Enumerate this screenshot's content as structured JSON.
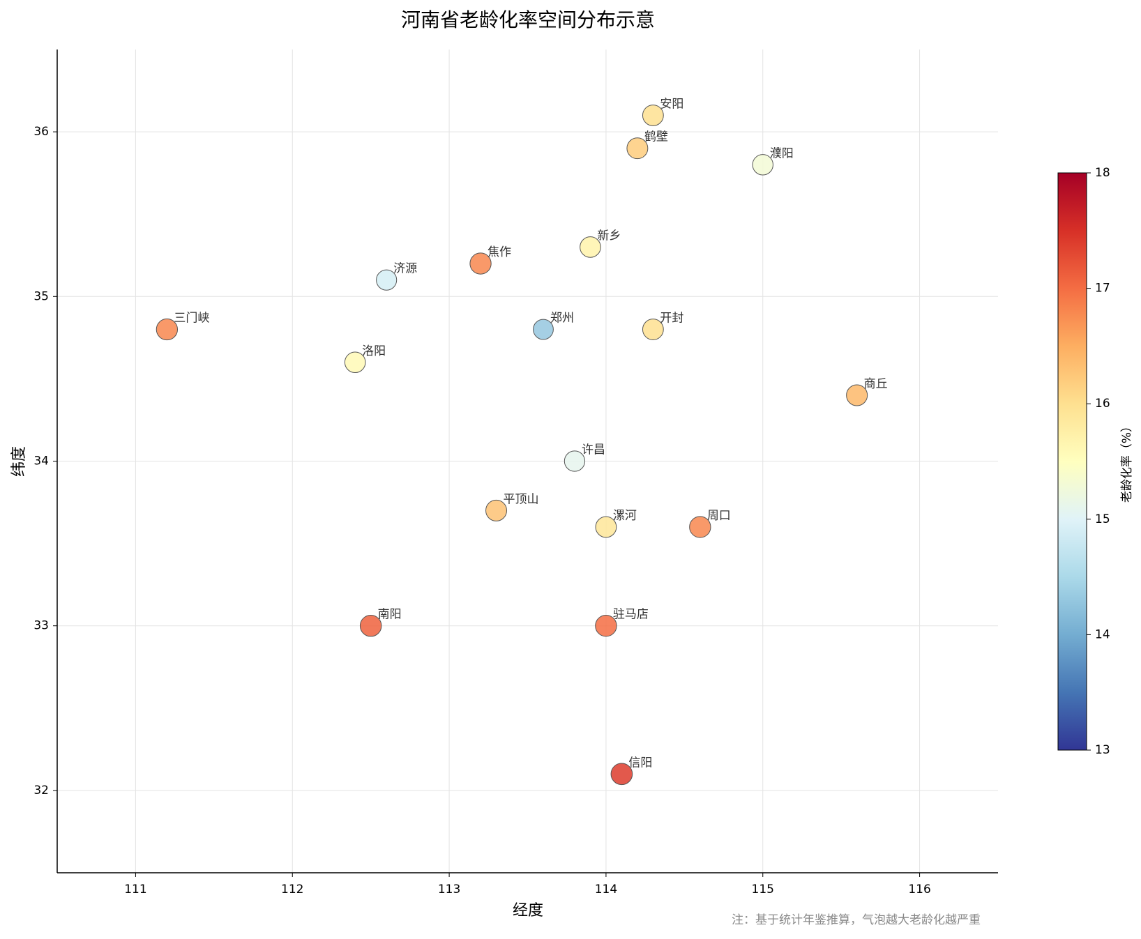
{
  "chart_data": {
    "type": "scatter",
    "title": "河南省老龄化率空间分布示意",
    "x_label": "经度",
    "y_label": "纬度",
    "note": "注：基于统计年鉴推算，气泡越大老龄化越严重",
    "names": [
      "安阳",
      "鹤壁",
      "濮阳",
      "新乡",
      "焦作",
      "济源",
      "三门峡",
      "郑州",
      "开封",
      "洛阳",
      "商丘",
      "许昌",
      "平顶山",
      "漯河",
      "周口",
      "南阳",
      "驻马店",
      "信阳"
    ],
    "x": [
      114.3,
      114.2,
      115.0,
      113.9,
      113.2,
      112.6,
      111.2,
      113.6,
      114.3,
      112.4,
      115.6,
      113.8,
      113.3,
      114.0,
      114.6,
      112.5,
      114.0,
      114.1
    ],
    "y": [
      36.1,
      35.9,
      35.8,
      35.3,
      35.2,
      35.1,
      34.8,
      34.8,
      34.8,
      34.6,
      34.4,
      34.0,
      33.7,
      33.6,
      33.6,
      33.0,
      33.0,
      32.1
    ],
    "values": [
      16.0,
      16.2,
      15.3,
      15.7,
      16.8,
      14.9,
      16.8,
      14.3,
      16.0,
      15.6,
      16.4,
      15.1,
      16.3,
      15.9,
      16.8,
      17.1,
      17.0,
      17.4
    ],
    "xlim": [
      110.5,
      116.5
    ],
    "ylim": [
      31.5,
      36.5
    ],
    "xticks": [
      111,
      112,
      113,
      114,
      115,
      116
    ],
    "yticks": [
      32,
      33,
      34,
      35,
      36
    ],
    "grid": true,
    "colormap": [
      "#313695",
      "#4575b4",
      "#74add1",
      "#abd9e9",
      "#e0f3f8",
      "#ffffbf",
      "#fee090",
      "#fdae61",
      "#f46d43",
      "#d73027",
      "#a50026"
    ],
    "colorbar": {
      "label": "老龄化率（%）",
      "lim": [
        13,
        18
      ],
      "ticks": [
        13,
        14,
        15,
        16,
        17,
        18
      ]
    }
  }
}
